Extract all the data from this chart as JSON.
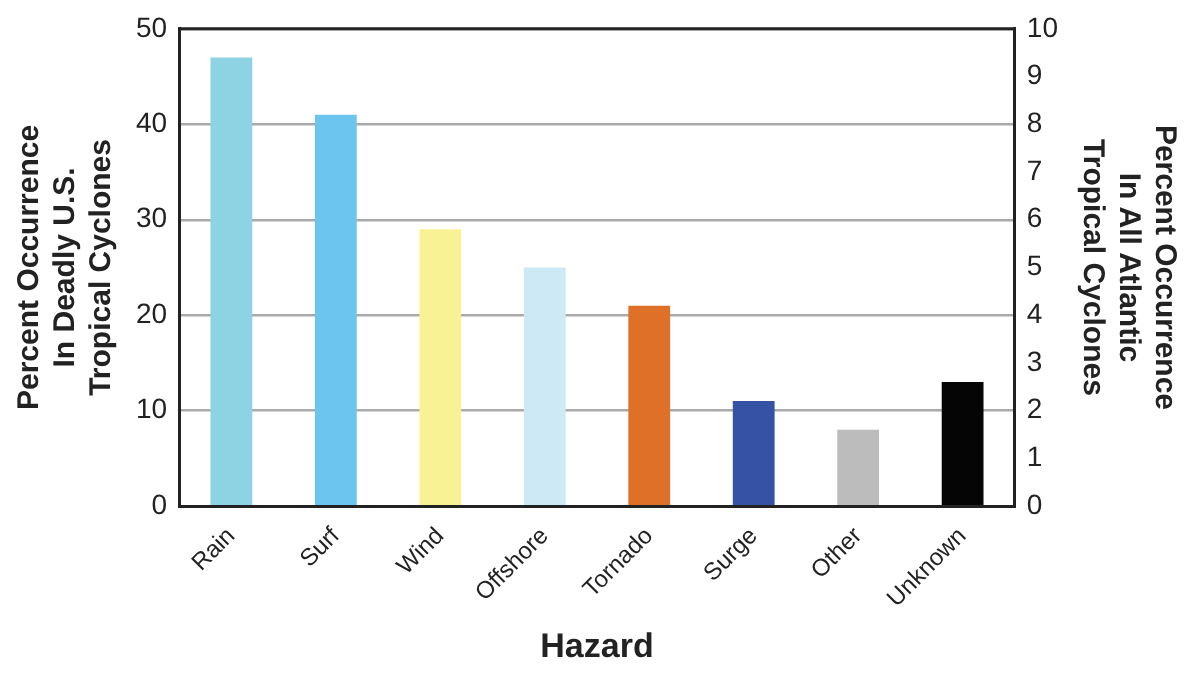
{
  "chart_data": {
    "type": "bar",
    "xlabel": "Hazard",
    "ylabel": "Percent Occurrence\nIn Deadly U.S.\nTropical Cyclones",
    "y2label": "Percent Occurrence\nIn All Atlantic\nTropical Cyclones",
    "categories": [
      "Rain",
      "Surf",
      "Wind",
      "Offshore",
      "Tornado",
      "Surge",
      "Other",
      "Unknown"
    ],
    "values": [
      47,
      41,
      29,
      25,
      21,
      11,
      8,
      13
    ],
    "colors": [
      "#8dd3e3",
      "#6cc5ef",
      "#f8f294",
      "#cde9f5",
      "#df7028",
      "#3552a5",
      "#bcbcbc",
      "#050505"
    ],
    "ylim": [
      0,
      50
    ],
    "yticks": [
      0,
      10,
      20,
      30,
      40,
      50
    ],
    "y2lim": [
      0,
      10
    ],
    "y2ticks": [
      0,
      1,
      2,
      3,
      4,
      5,
      6,
      7,
      8,
      9,
      10
    ],
    "grid": "y",
    "legend": false
  }
}
